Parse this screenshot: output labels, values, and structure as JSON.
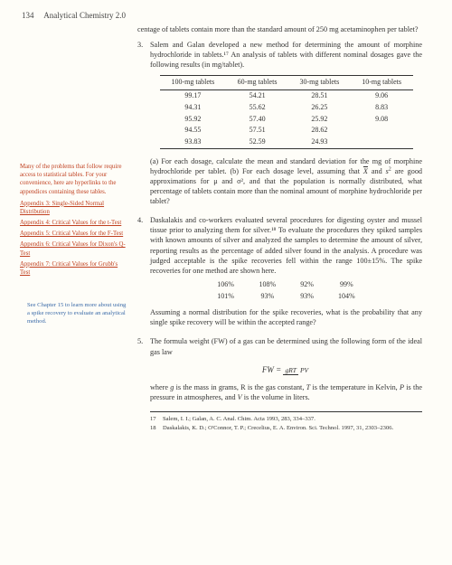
{
  "header": {
    "page_num": "134",
    "book_title": "Analytical Chemistry 2.0"
  },
  "sidebar": {
    "note1": "Many of the problems that follow require access to statistical tables. For your convenience, here are hyperlinks to the appendices containing these tables.",
    "links": [
      "Appendix 3: Single-Sided Normal Distribution",
      "Appendix 4: Critical Values for the t-Test",
      "Appendix 5: Critical Values for the F-Test",
      "Appendix 6: Critical Values for Dixon's Q-Test",
      "Appendix 7: Critical Values for Grubb's Test"
    ],
    "note2": "See Chapter 15 to learn more about using a spike recovery to evaluate an analytical method."
  },
  "main": {
    "p_intro": "centage of tablets contain more than the standard amount of 250 mg acetaminophen per tablet?",
    "q3": {
      "num": "3.",
      "text": "Salem and Galan developed a new method for determining the amount of morphine hydrochloride in tablets.¹⁷ An analysis of tablets with different nominal dosages gave the following results (in mg/tablet).",
      "table": {
        "headers": [
          "100-mg tablets",
          "60-mg tablets",
          "30-mg tablets",
          "10-mg tablets"
        ],
        "rows": [
          [
            "99.17",
            "54.21",
            "28.51",
            "9.06"
          ],
          [
            "94.31",
            "55.62",
            "26.25",
            "8.83"
          ],
          [
            "95.92",
            "57.40",
            "25.92",
            "9.08"
          ],
          [
            "94.55",
            "57.51",
            "28.62",
            ""
          ],
          [
            "93.83",
            "52.59",
            "24.93",
            ""
          ]
        ]
      },
      "after_a": "(a) For each dosage, calculate the mean and standard deviation for the mg of morphine hydrochloride per tablet. (b) For each dosage level, assuming that ",
      "after_b": " are good approximations for μ and σ², and that the population is normally distributed, what percentage of tablets contain more than the nominal amount of morphine hydrochloride per tablet?"
    },
    "q4": {
      "num": "4.",
      "text": "Daskalakis and co-workers evaluated several procedures for digesting oyster and mussel tissue prior to analyzing them for silver.¹⁸ To evaluate the procedures they spiked samples with known amounts of silver and analyzed the samples to determine the amount of silver, reporting results as the percentage of added silver found in the analysis. A procedure was judged acceptable is the spike recoveries fell within the range 100±15%. The spike recoveries for one method are shown here.",
      "table": {
        "rows": [
          [
            "106%",
            "108%",
            "92%",
            "99%"
          ],
          [
            "101%",
            "93%",
            "93%",
            "104%"
          ]
        ]
      },
      "after": "Assuming a normal distribution for the spike recoveries, what is the probability that any single spike recovery will be within the accepted range?"
    },
    "q5": {
      "num": "5.",
      "text": "The formula weight (FW) of a gas can be determined using the following form of the ideal gas law",
      "formula": {
        "lhs": "FW",
        "top": "gRT",
        "bot": "PV"
      },
      "after_a": "where ",
      "after_b": " is the mass in grams, R is the gas constant, ",
      "after_c": " is the temperature in Kelvin, ",
      "after_d": " is the pressure in atmospheres, and ",
      "after_e": " is the volume in liters.",
      "g": "g",
      "T": "T",
      "P": "P",
      "V": "V"
    }
  },
  "footnotes": {
    "f17": {
      "num": "17",
      "text": "Salem, I. I.; Galan, A. C. Anal. Chim. Acta 1993, 283, 334–337."
    },
    "f18": {
      "num": "18",
      "text": "Daskalakis, K. D.; O'Connor, T. P.; Crecelius, E. A. Environ. Sci. Technol. 1997, 31, 2303–2306."
    }
  },
  "symbols": {
    "xbar_and_s2": "X̄ and s²"
  }
}
